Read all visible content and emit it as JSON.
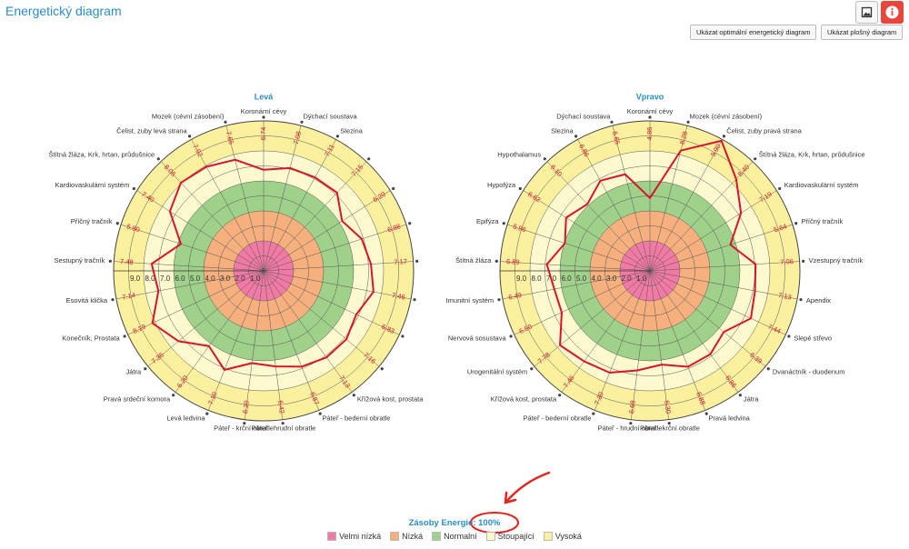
{
  "header": {
    "title": "Energetický diagram"
  },
  "buttons": [
    "Ukázat optimální energetický diagram",
    "Ukázat plošný diagram"
  ],
  "chart_data": [
    {
      "type": "radar",
      "title": "Levá",
      "color": "#d8142c",
      "categories": [
        "Koronární cévy",
        "Dýchací soustava",
        "Slezina",
        null,
        null,
        null,
        null,
        null,
        null,
        null,
        "Křížová kost, prostata",
        "Páteř - bederní obratle",
        "Páteř - hrudní obratle",
        "Páteř - krční obratle",
        "Levá ledvina",
        "Pravá srdeční komora",
        "Játra",
        "Konečník, Prostata",
        "Esovitá klička",
        "Sestupný tračník",
        "Příčný tračník",
        "Kardiovaskulární systém",
        "Štítná žláza, Krk, hrtan, průdušnice",
        "Čelist, zuby levá strana",
        "Mozek (cévní zásobení)"
      ],
      "values": [
        6.74,
        7.08,
        7.11,
        7.15,
        6.2,
        6.88,
        7.17,
        7.46,
        6.83,
        7.16,
        7.13,
        6.87,
        6.42,
        6.2,
        7.1,
        6.2,
        7.36,
        8.19,
        7.14,
        7.48,
        5.8,
        7.4,
        8.06,
        7.92,
        7.65
      ],
      "value_labels": [
        "6.74",
        "7.08",
        "7.11",
        "7.15",
        "6.20",
        "6.88",
        "7.17",
        "7.46",
        "6.83",
        "7.16",
        "7.13",
        "6.87",
        "6.42",
        "6.20",
        "7.10",
        "6.20",
        "7.36",
        "8.19",
        "7.14",
        "7.48",
        "5.80",
        "7.40",
        "8.06",
        "7.92",
        "7.65"
      ],
      "ylim": [
        0,
        10
      ],
      "yticks": [
        {
          "value": 9,
          "label": "9.0"
        },
        {
          "value": 8,
          "label": "8.0"
        },
        {
          "value": 7,
          "label": "7.0"
        },
        {
          "value": 6,
          "label": "6.0"
        },
        {
          "value": 5,
          "label": "5.0"
        },
        {
          "value": 4,
          "label": "4.0"
        },
        {
          "value": 3,
          "label": "3.0"
        },
        {
          "value": 2,
          "label": "2.0"
        },
        {
          "value": 1,
          "label": "1.0"
        }
      ]
    },
    {
      "type": "radar",
      "title": "Vpravo",
      "color": "#d8142c",
      "categories": [
        "Koronární cévy",
        "Mozek (cévní zásobení)",
        "Čelist, zuby pravá strana",
        "Štítná žláza, Krk, hrtan, průdušnice",
        "Kardiovaskulární systém",
        "Příčný tračník",
        "Vzestupný tračník",
        "Apendix",
        "Slepé střevo",
        "Dvanáctník - duodenum",
        "Játra",
        "Pravá ledvina",
        "Páteř - krční obratle",
        "Páteř - hrudní obratle",
        "Páteř - bederní obratle",
        "Křížová kost, prostata",
        "Urogenitální systém",
        "Nervová sosustava",
        "Imunitní systém",
        "Štítná žláza",
        "Epifýza",
        "Hypofýza",
        "Hypothalamus",
        "Slezina",
        "Dýchací soustava"
      ],
      "values": [
        4.86,
        8.28,
        9.9,
        8.4,
        7.19,
        5.64,
        7.06,
        7.13,
        7.44,
        6.39,
        6.86,
        6.88,
        6.3,
        6.69,
        7.3,
        7.46,
        7.78,
        6.5,
        6.49,
        6.89,
        5.96,
        6.62,
        6.1,
        6.86,
        6.65
      ],
      "value_labels": [
        "4.86",
        "8.28",
        "9.90",
        "8.40",
        "7.19",
        "5.64",
        "7.06",
        "7.13",
        "7.44",
        "6.39",
        "6.86",
        "6.88",
        "6.30",
        "6.69",
        "7.30",
        "7.46",
        "7.78",
        "6.50",
        "6.49",
        "6.89",
        "5.96",
        "6.62",
        "6.10",
        "6.86",
        "6.65"
      ],
      "ylim": [
        0,
        10
      ],
      "yticks": [
        {
          "value": 9,
          "label": "9.0"
        },
        {
          "value": 8,
          "label": "8.0"
        },
        {
          "value": 7,
          "label": "7.0"
        },
        {
          "value": 6,
          "label": "6.0"
        },
        {
          "value": 5,
          "label": "5.0"
        },
        {
          "value": 4,
          "label": "4.0"
        },
        {
          "value": 3,
          "label": "3.0"
        },
        {
          "value": 2,
          "label": "2.0"
        },
        {
          "value": 1,
          "label": "1.0"
        }
      ]
    }
  ],
  "legend": [
    {
      "name": "Velmi nízká",
      "color": "#f07aa5",
      "range": [
        0,
        2
      ]
    },
    {
      "name": "Nízká",
      "color": "#f5b07e",
      "range": [
        2,
        4
      ]
    },
    {
      "name": "Normalní",
      "color": "#9fd18a",
      "range": [
        4,
        6
      ]
    },
    {
      "name": "Stoupající",
      "color": "#fdf9cf",
      "range": [
        6,
        8
      ]
    },
    {
      "name": "Vysoká",
      "color": "#fbf09e",
      "range": [
        8,
        10
      ]
    }
  ],
  "footer": {
    "label": "Zásoby Energie:",
    "value": "100%"
  }
}
